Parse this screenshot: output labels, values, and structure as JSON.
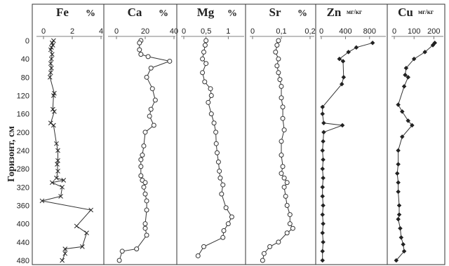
{
  "chart_data": {
    "type": "line",
    "ylabel": "Горизонт, см",
    "y_ticks": [
      0,
      40,
      80,
      120,
      160,
      200,
      240,
      280,
      320,
      360,
      400,
      440,
      480
    ],
    "ylim": [
      0,
      480
    ],
    "panels": [
      {
        "title": "Fe",
        "unit": "%",
        "xlim": [
          0,
          4
        ],
        "x_ticks": [
          {
            "v": 0,
            "label": "0"
          },
          {
            "v": 2,
            "label": "2"
          },
          {
            "v": 4,
            "label": "4"
          }
        ],
        "marker": "x",
        "points": [
          [
            0.7,
            0
          ],
          [
            0.6,
            5
          ],
          [
            0.65,
            10
          ],
          [
            0.55,
            15
          ],
          [
            0.5,
            20
          ],
          [
            0.6,
            30
          ],
          [
            0.55,
            40
          ],
          [
            0.5,
            50
          ],
          [
            0.55,
            60
          ],
          [
            0.5,
            70
          ],
          [
            0.45,
            80
          ],
          [
            0.75,
            115
          ],
          [
            0.7,
            120
          ],
          [
            0.65,
            150
          ],
          [
            0.75,
            155
          ],
          [
            0.5,
            180
          ],
          [
            0.7,
            185
          ],
          [
            0.9,
            225
          ],
          [
            1.0,
            240
          ],
          [
            1.0,
            262
          ],
          [
            0.95,
            270
          ],
          [
            1.0,
            285
          ],
          [
            0.9,
            300
          ],
          [
            1.4,
            305
          ],
          [
            0.6,
            310
          ],
          [
            1.3,
            320
          ],
          [
            1.2,
            340
          ],
          [
            -0.1,
            350
          ],
          [
            3.3,
            370
          ],
          [
            2.3,
            405
          ],
          [
            3.0,
            420
          ],
          [
            2.7,
            450
          ],
          [
            1.5,
            455
          ],
          [
            1.5,
            465
          ],
          [
            1.3,
            480
          ]
        ]
      },
      {
        "title": "Ca",
        "unit": "%",
        "xlim": [
          0,
          40
        ],
        "x_ticks": [
          {
            "v": 0,
            "label": "0"
          },
          {
            "v": 20,
            "label": "20"
          },
          {
            "v": 40,
            "label": "40"
          }
        ],
        "marker": "circle",
        "points": [
          [
            17,
            0
          ],
          [
            16,
            5
          ],
          [
            16,
            20
          ],
          [
            17,
            30
          ],
          [
            22,
            35
          ],
          [
            37,
            45
          ],
          [
            24,
            60
          ],
          [
            21,
            80
          ],
          [
            25,
            105
          ],
          [
            27,
            130
          ],
          [
            24,
            150
          ],
          [
            23,
            165
          ],
          [
            26,
            185
          ],
          [
            20,
            200
          ],
          [
            19,
            230
          ],
          [
            18,
            250
          ],
          [
            17,
            260
          ],
          [
            17,
            275
          ],
          [
            17,
            295
          ],
          [
            18,
            305
          ],
          [
            20,
            310
          ],
          [
            19,
            320
          ],
          [
            20,
            335
          ],
          [
            21,
            350
          ],
          [
            21,
            370
          ],
          [
            20,
            400
          ],
          [
            20,
            410
          ],
          [
            21,
            425
          ],
          [
            14,
            455
          ],
          [
            4,
            460
          ],
          [
            2,
            480
          ]
        ]
      },
      {
        "title": "Mg",
        "unit": "%",
        "xlim": [
          0,
          1.2
        ],
        "x_ticks": [
          {
            "v": 0,
            "label": "0"
          },
          {
            "v": 0.5,
            "label": "0,5"
          },
          {
            "v": 1,
            "label": "1"
          }
        ],
        "marker": "circle",
        "points": [
          [
            0.5,
            0
          ],
          [
            0.48,
            10
          ],
          [
            0.45,
            25
          ],
          [
            0.42,
            40
          ],
          [
            0.5,
            50
          ],
          [
            0.42,
            70
          ],
          [
            0.47,
            90
          ],
          [
            0.6,
            105
          ],
          [
            0.62,
            120
          ],
          [
            0.55,
            135
          ],
          [
            0.62,
            160
          ],
          [
            0.68,
            180
          ],
          [
            0.72,
            200
          ],
          [
            0.73,
            225
          ],
          [
            0.75,
            245
          ],
          [
            0.78,
            265
          ],
          [
            0.8,
            285
          ],
          [
            0.82,
            300
          ],
          [
            0.88,
            315
          ],
          [
            0.85,
            335
          ],
          [
            0.95,
            365
          ],
          [
            1.08,
            385
          ],
          [
            1.0,
            400
          ],
          [
            0.9,
            415
          ],
          [
            0.88,
            430
          ],
          [
            0.45,
            450
          ],
          [
            0.32,
            470
          ]
        ]
      },
      {
        "title": "Sr",
        "unit": "%",
        "xlim": [
          0,
          0.2
        ],
        "x_ticks": [
          {
            "v": 0,
            "label": "0"
          },
          {
            "v": 0.1,
            "label": "0,1"
          },
          {
            "v": 0.2,
            "label": "0,2"
          }
        ],
        "marker": "circle",
        "points": [
          [
            0.09,
            0
          ],
          [
            0.085,
            10
          ],
          [
            0.08,
            25
          ],
          [
            0.09,
            40
          ],
          [
            0.085,
            55
          ],
          [
            0.09,
            70
          ],
          [
            0.095,
            85
          ],
          [
            0.1,
            100
          ],
          [
            0.1,
            125
          ],
          [
            0.105,
            145
          ],
          [
            0.105,
            170
          ],
          [
            0.11,
            195
          ],
          [
            0.1,
            220
          ],
          [
            0.1,
            250
          ],
          [
            0.105,
            275
          ],
          [
            0.1,
            290
          ],
          [
            0.11,
            300
          ],
          [
            0.12,
            310
          ],
          [
            0.11,
            320
          ],
          [
            0.115,
            340
          ],
          [
            0.12,
            360
          ],
          [
            0.13,
            380
          ],
          [
            0.13,
            400
          ],
          [
            0.14,
            410
          ],
          [
            0.12,
            420
          ],
          [
            0.09,
            440
          ],
          [
            0.06,
            450
          ],
          [
            0.04,
            465
          ],
          [
            0.035,
            480
          ]
        ]
      },
      {
        "title": "Zn",
        "unit": "мг/кг",
        "xlim": [
          0,
          1000
        ],
        "x_ticks": [
          {
            "v": 0,
            "label": "0"
          },
          {
            "v": 400,
            "label": "400"
          },
          {
            "v": 800,
            "label": "800"
          }
        ],
        "marker": "diamond",
        "points": [
          [
            850,
            5
          ],
          [
            580,
            15
          ],
          [
            450,
            25
          ],
          [
            300,
            40
          ],
          [
            360,
            45
          ],
          [
            370,
            80
          ],
          [
            340,
            95
          ],
          [
            20,
            145
          ],
          [
            20,
            160
          ],
          [
            40,
            180
          ],
          [
            350,
            185
          ],
          [
            40,
            200
          ],
          [
            30,
            220
          ],
          [
            20,
            240
          ],
          [
            30,
            260
          ],
          [
            20,
            280
          ],
          [
            30,
            300
          ],
          [
            20,
            320
          ],
          [
            20,
            340
          ],
          [
            30,
            360
          ],
          [
            20,
            380
          ],
          [
            30,
            400
          ],
          [
            20,
            420
          ],
          [
            30,
            440
          ],
          [
            20,
            460
          ],
          [
            20,
            480
          ]
        ]
      },
      {
        "title": "Cu",
        "unit": "мг/кг",
        "xlim": [
          0,
          220
        ],
        "x_ticks": [
          {
            "v": 0,
            "label": "0"
          },
          {
            "v": 100,
            "label": "100"
          },
          {
            "v": 200,
            "label": "200"
          }
        ],
        "marker": "diamond",
        "points": [
          [
            205,
            5
          ],
          [
            195,
            10
          ],
          [
            155,
            25
          ],
          [
            100,
            40
          ],
          [
            60,
            60
          ],
          [
            55,
            75
          ],
          [
            70,
            80
          ],
          [
            50,
            100
          ],
          [
            20,
            140
          ],
          [
            40,
            155
          ],
          [
            70,
            175
          ],
          [
            90,
            185
          ],
          [
            40,
            210
          ],
          [
            20,
            240
          ],
          [
            20,
            270
          ],
          [
            15,
            290
          ],
          [
            20,
            310
          ],
          [
            20,
            330
          ],
          [
            25,
            360
          ],
          [
            25,
            380
          ],
          [
            20,
            390
          ],
          [
            30,
            410
          ],
          [
            35,
            430
          ],
          [
            45,
            445
          ],
          [
            50,
            460
          ],
          [
            10,
            480
          ]
        ]
      }
    ]
  }
}
